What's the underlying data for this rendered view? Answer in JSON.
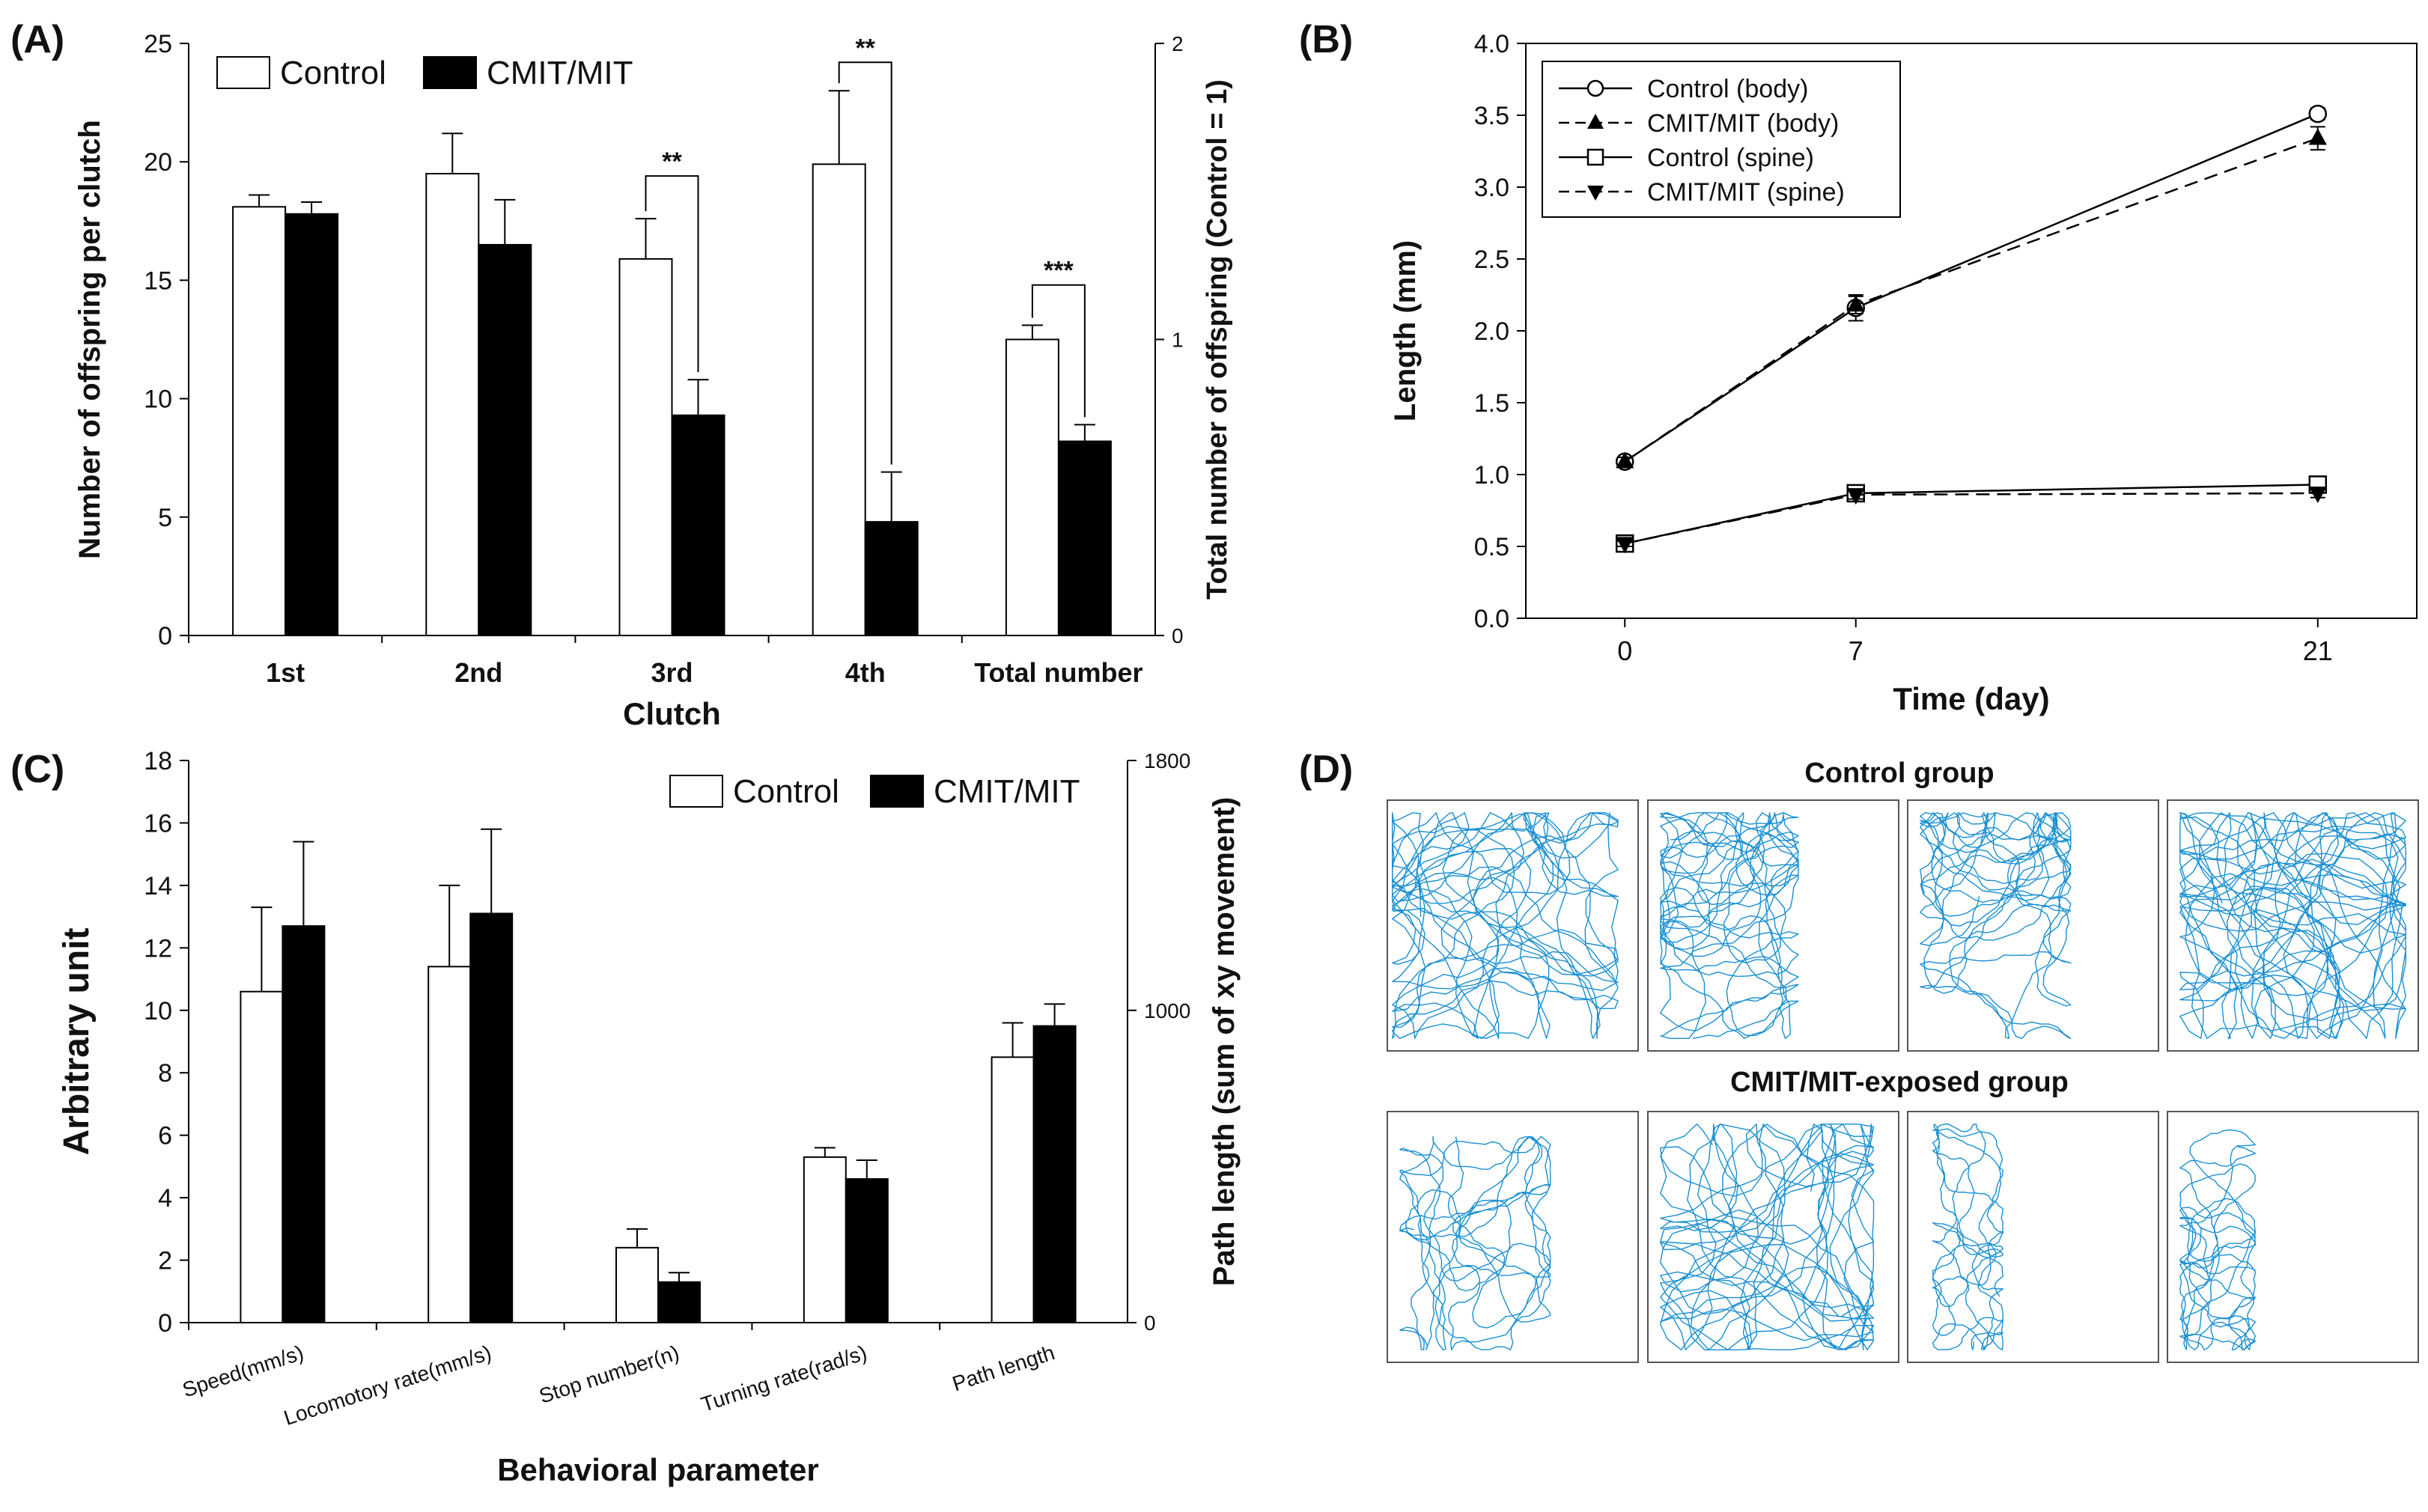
{
  "panels": {
    "A": "(A)",
    "B": "(B)",
    "C": "(C)",
    "D": "(D)"
  },
  "chart_data": [
    {
      "id": "A",
      "type": "bar",
      "xlabel": "Clutch",
      "ylabel": "Number of offspring per clutch",
      "ylabel_right": "Total number of offspring (Control = 1)",
      "categories": [
        "1st",
        "2nd",
        "3rd",
        "4th",
        "Total number"
      ],
      "ylim": [
        0,
        25
      ],
      "yticks": [
        0,
        5,
        10,
        15,
        20,
        25
      ],
      "ylim_right": [
        0,
        2
      ],
      "yticks_right": [
        0,
        1,
        2
      ],
      "legend_position": "top-left",
      "series": [
        {
          "name": "Control",
          "fill": "#ffffff",
          "values": [
            18.1,
            19.5,
            15.9,
            19.9,
            12.5
          ],
          "errors": [
            0.5,
            1.7,
            1.7,
            3.1,
            0.6
          ]
        },
        {
          "name": "CMIT/MIT",
          "fill": "#000000",
          "values": [
            17.8,
            16.5,
            9.3,
            4.8,
            8.2
          ],
          "errors": [
            0.5,
            1.9,
            1.5,
            2.1,
            0.7
          ]
        }
      ],
      "significance": [
        {
          "category": 2,
          "label": "**",
          "level": 19.4
        },
        {
          "category": 3,
          "label": "**",
          "level": 24.2
        },
        {
          "category": 4,
          "label": "***",
          "level": 14.8
        }
      ]
    },
    {
      "id": "B",
      "type": "line",
      "xlabel": "Time (day)",
      "ylabel": "Length (mm)",
      "x": [
        0,
        7,
        21
      ],
      "xticks": [
        "0",
        "7",
        "21"
      ],
      "ylim": [
        0,
        4.0
      ],
      "yticks": [
        "0.0",
        "0.5",
        "1.0",
        "1.5",
        "2.0",
        "2.5",
        "3.0",
        "3.5",
        "4.0"
      ],
      "legend_position": "top-left",
      "series": [
        {
          "name": "Control (body)",
          "marker": "circle-open",
          "dash": "solid",
          "values": [
            1.09,
            2.16,
            3.51
          ],
          "errors": [
            0.03,
            0.09,
            0.04
          ]
        },
        {
          "name": "CMIT/MIT (body)",
          "marker": "triangle-up",
          "dash": "dashed",
          "values": [
            1.09,
            2.18,
            3.34
          ],
          "errors": [
            0.03,
            0.06,
            0.08
          ]
        },
        {
          "name": "Control (spine)",
          "marker": "square-open",
          "dash": "solid",
          "values": [
            0.52,
            0.87,
            0.93
          ],
          "errors": [
            0.02,
            0.03,
            0.03
          ]
        },
        {
          "name": "CMIT/MIT (spine)",
          "marker": "triangle-down",
          "dash": "dashed",
          "values": [
            0.52,
            0.86,
            0.87
          ],
          "errors": [
            0.02,
            0.03,
            0.03
          ]
        }
      ]
    },
    {
      "id": "C",
      "type": "bar",
      "xlabel": "Behavioral parameter",
      "ylabel": "Arbitrary unit",
      "ylabel_right": "Path length (sum of xy movement)",
      "categories": [
        "Speed(mm/s)",
        "Locomotory rate(mm/s)",
        "Stop number(n)",
        "Turning rate(rad/s)",
        "Path length"
      ],
      "ylim": [
        0,
        18
      ],
      "yticks": [
        0,
        2,
        4,
        6,
        8,
        10,
        12,
        14,
        16,
        18
      ],
      "ylim_right": [
        0,
        1800
      ],
      "yticks_right": [
        0,
        1000,
        1800
      ],
      "legend_position": "top-right",
      "series": [
        {
          "name": "Control",
          "fill": "#ffffff",
          "values": [
            10.6,
            11.4,
            2.4,
            5.3,
            8.5
          ],
          "errors": [
            2.7,
            2.6,
            0.6,
            0.3,
            1.1
          ]
        },
        {
          "name": "CMIT/MIT",
          "fill": "#000000",
          "values": [
            12.7,
            13.1,
            1.3,
            4.6,
            9.5
          ],
          "errors": [
            2.7,
            2.7,
            0.3,
            0.6,
            0.7
          ]
        }
      ]
    }
  ],
  "panel_d": {
    "rows": [
      {
        "title": "Control group",
        "tracks": 4
      },
      {
        "title": "CMIT/MIT-exposed group",
        "tracks": 4
      }
    ],
    "track_color": "#1a8fd0"
  }
}
